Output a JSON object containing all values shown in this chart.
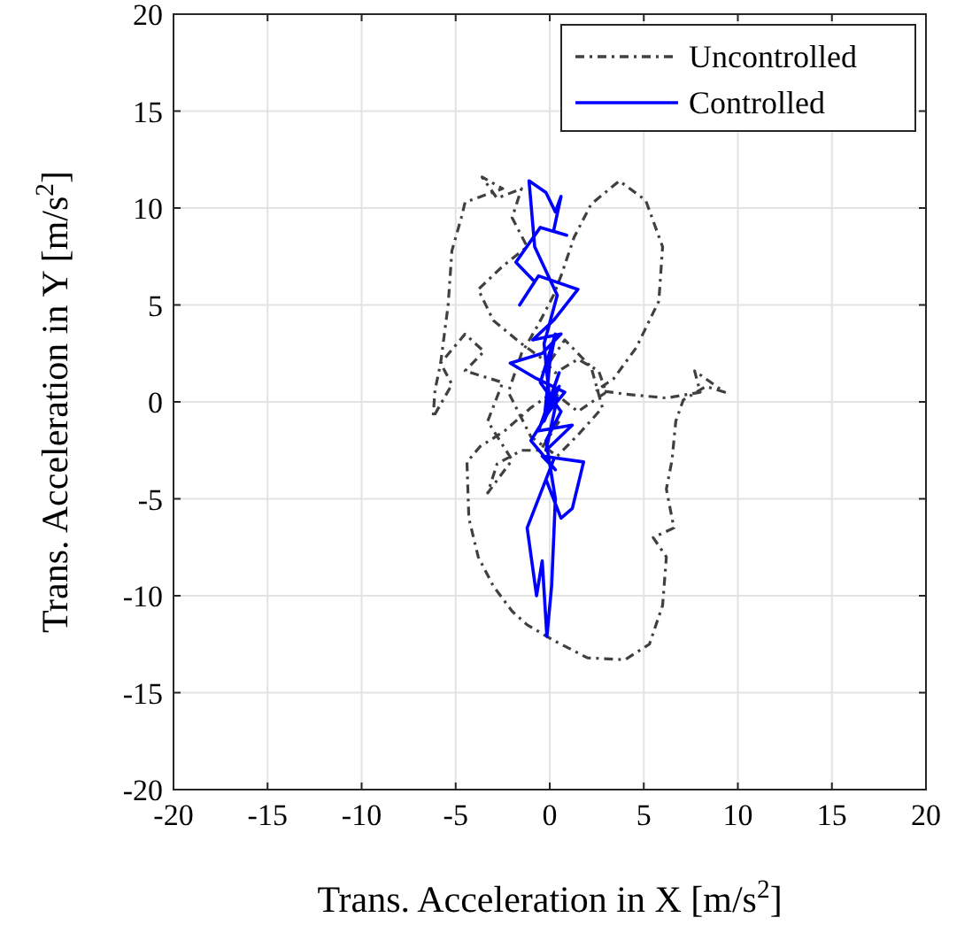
{
  "chart_data": {
    "type": "line",
    "xlabel": "Trans. Acceleration in X [m/s$^{2}$]",
    "ylabel": "Trans. Acceleration in Y [m/s$^{2}$]",
    "xlim": [
      -20,
      20
    ],
    "ylim": [
      -20,
      20
    ],
    "xticks": [
      -20,
      -15,
      -10,
      -5,
      0,
      5,
      10,
      15,
      20
    ],
    "yticks": [
      -20,
      -15,
      -10,
      -5,
      0,
      5,
      10,
      15,
      20
    ],
    "grid": true,
    "legend": "top right",
    "marker": "none",
    "series": [
      {
        "name": "Uncontrolled",
        "color": "#404040",
        "line_style": "dashdot",
        "x": [
          0.5,
          -0.5,
          -1.5,
          -2.8,
          -3.3,
          -2,
          -3.3,
          -2.5,
          -4.5,
          -3.5,
          -4.5,
          -5.8,
          -5.2,
          -6.2,
          -6.1,
          -5.8,
          -5.4,
          -5.2,
          -4.7,
          -4.5,
          -2.5,
          -3.6,
          -2.8,
          -1.5,
          -2,
          -1.2,
          -2.5,
          -3.8,
          -3,
          -1.5,
          -0.5,
          0.3,
          1.5,
          2.6,
          3,
          1.5,
          0.2,
          -1,
          -2.4,
          -3.7,
          -4.4,
          -4.3,
          -3.8,
          -3,
          -2,
          -1.2,
          0.2,
          2,
          4,
          5.3,
          6,
          6.2,
          5.5,
          6.6,
          6.2,
          6.5,
          6.7,
          7.1,
          8.3,
          9.3,
          7.7,
          8,
          6.2,
          4,
          2.5,
          3.4,
          4.6,
          5.8,
          6,
          5.1,
          3.7,
          2.2,
          1.3,
          0.6,
          0.2,
          -0.6,
          -1.5,
          -2.2,
          -1,
          0.4,
          1.6,
          2.8,
          2.2,
          0.8,
          -0.4
        ],
        "values": [
          -1,
          -2.5,
          -2.5,
          -3.2,
          -4.7,
          -3,
          -1,
          1,
          1.6,
          2.6,
          3.5,
          2,
          0.9,
          -0.8,
          0.6,
          2,
          5,
          7.8,
          9.5,
          10.3,
          11,
          11.6,
          10.5,
          11,
          9.5,
          8,
          7,
          5.8,
          4.2,
          3,
          2.3,
          1.5,
          2.2,
          1.6,
          0.5,
          -0.5,
          0.5,
          -0.3,
          -1.5,
          -2.3,
          -3.1,
          -6,
          -8,
          -9.5,
          -10.8,
          -11.5,
          -12.3,
          -13.2,
          -13.3,
          -12.5,
          -10.5,
          -8,
          -7,
          -6.5,
          -4.5,
          -3,
          -1,
          0.1,
          0.8,
          0.5,
          1.6,
          0.5,
          0.2,
          0.4,
          0.6,
          1.2,
          2.8,
          5.2,
          8,
          10.4,
          11.4,
          10.2,
          8.5,
          6.5,
          5.5,
          4,
          2.5,
          0.5,
          -1.8,
          -2.8,
          -1.6,
          -0.3,
          1.8,
          3.2,
          1.5
        ]
      },
      {
        "name": "Controlled",
        "color": "#0000ff",
        "line_style": "solid",
        "x": [
          0,
          -0.3,
          0.4,
          -0.8,
          -1.1,
          -0.2,
          0.3,
          0.6,
          0.2,
          0.9,
          -0.5,
          -1.8,
          -0.8,
          -1.6,
          -0.6,
          1.5,
          0.2,
          -0.9,
          0.6,
          -0.4,
          -2.1,
          -0.7,
          0.8,
          -0.3,
          0.5,
          -0.6,
          1.2,
          -0.2,
          0.4,
          -1,
          0.3,
          -0.4,
          1.8,
          1.2,
          0.6,
          -0.2,
          0.2,
          -1.2,
          -0.7,
          -0.4,
          -0.15,
          0.1,
          0.3,
          -0.2,
          0.6,
          -0.5,
          0.3,
          0,
          -0.3,
          0.5,
          -0.1
        ],
        "values": [
          0,
          3,
          5.5,
          8,
          11.4,
          10.8,
          9.8,
          10.6,
          8.8,
          8.6,
          9,
          7.2,
          6.2,
          5,
          6.5,
          5.8,
          4.2,
          3.2,
          3.5,
          2.5,
          2,
          1.2,
          0.5,
          -0.8,
          1.5,
          -1.5,
          -1.2,
          -2.5,
          0.2,
          -2,
          -3.5,
          -2.8,
          -3.1,
          -5.5,
          -6,
          -4,
          -3,
          -6.5,
          -10,
          -8.2,
          -12.1,
          -9.5,
          -5,
          -2,
          -0.5,
          1,
          3.5,
          2,
          -1,
          0.8,
          0
        ]
      }
    ]
  }
}
